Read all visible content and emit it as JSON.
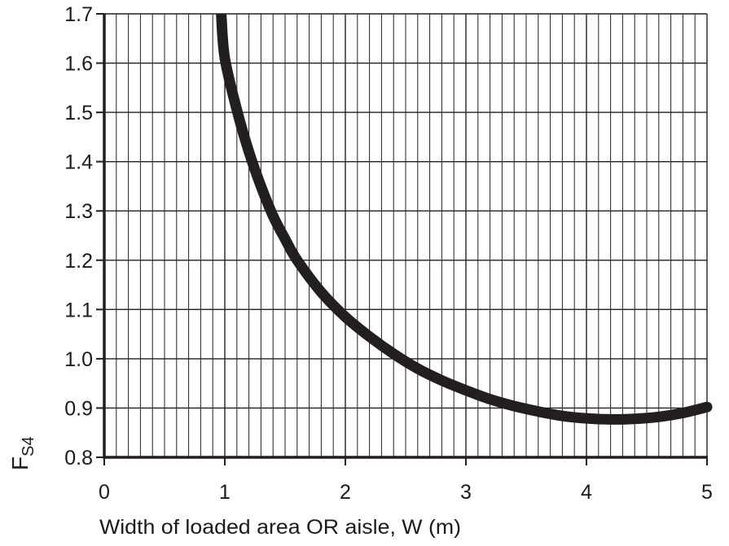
{
  "chart_data": {
    "type": "line",
    "title": "",
    "xlabel": "Width of loaded area OR aisle, W (m)",
    "ylabel": {
      "main": "F",
      "subscript": "S4"
    },
    "xlim": [
      0,
      5
    ],
    "ylim": [
      0.8,
      1.7
    ],
    "grid": true,
    "x_ticks": [
      "0",
      "1",
      "2",
      "3",
      "4",
      "5"
    ],
    "y_ticks": [
      "0.8",
      "0.9",
      "1.0",
      "1.1",
      "1.2",
      "1.3",
      "1.4",
      "1.5",
      "1.6",
      "1.7"
    ],
    "series": [
      {
        "points": [
          [
            0.97,
            1.7
          ],
          [
            1.0,
            1.61
          ],
          [
            1.1,
            1.505
          ],
          [
            1.2,
            1.42
          ],
          [
            1.3,
            1.35
          ],
          [
            1.4,
            1.29
          ],
          [
            1.5,
            1.243
          ],
          [
            1.6,
            1.2
          ],
          [
            1.8,
            1.135
          ],
          [
            2.0,
            1.085
          ],
          [
            2.2,
            1.045
          ],
          [
            2.4,
            1.01
          ],
          [
            2.6,
            0.98
          ],
          [
            2.8,
            0.956
          ],
          [
            3.0,
            0.936
          ],
          [
            3.2,
            0.918
          ],
          [
            3.4,
            0.904
          ],
          [
            3.6,
            0.893
          ],
          [
            3.8,
            0.884
          ],
          [
            4.0,
            0.879
          ],
          [
            4.2,
            0.877
          ],
          [
            4.4,
            0.878
          ],
          [
            4.6,
            0.882
          ],
          [
            4.8,
            0.89
          ],
          [
            5.0,
            0.902
          ]
        ]
      }
    ],
    "colors": {
      "line": "#231f20",
      "grid": "#231f20",
      "background": "#ffffff"
    }
  }
}
